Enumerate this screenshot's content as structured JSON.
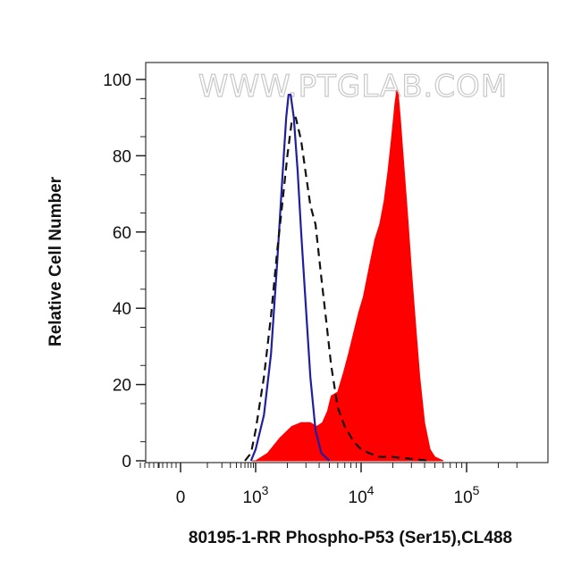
{
  "chart_data": {
    "type": "area",
    "xlabel": "80195-1-RR Phospho-P53 (Ser15),CL488",
    "ylabel": "Relative Cell Number",
    "watermark": "WWW.PTGLAB.COM",
    "x_scale": "biexponential",
    "x_ticks": [
      {
        "value": 0,
        "base": "0",
        "exp": ""
      },
      {
        "value": 1000,
        "base": "10",
        "exp": "3"
      },
      {
        "value": 10000,
        "base": "10",
        "exp": "4"
      },
      {
        "value": 100000,
        "base": "10",
        "exp": "5"
      }
    ],
    "y_ticks": [
      "0",
      "20",
      "40",
      "60",
      "80",
      "100"
    ],
    "ylim": [
      0,
      100
    ],
    "grid": false,
    "series": [
      {
        "style": "filled",
        "color": "#ff0000",
        "x": [
          850,
          1000,
          1300,
          1700,
          2200,
          2700,
          3300,
          3800,
          4300,
          4800,
          5200,
          6000,
          6800,
          7600,
          8400,
          9500,
          10500,
          12000,
          13500,
          15000,
          16500,
          18000,
          19500,
          21000,
          21800,
          22500,
          23500,
          25000,
          27500,
          30000,
          33000,
          36000,
          40000,
          45000,
          50000,
          60000
        ],
        "y": [
          0,
          0,
          2,
          6,
          9,
          10,
          10,
          9,
          10,
          13,
          17,
          18,
          23,
          28,
          33,
          39,
          43,
          51,
          58,
          62,
          68,
          76,
          85,
          94,
          97,
          96,
          90,
          80,
          65,
          50,
          35,
          22,
          10,
          3,
          1,
          0
        ]
      },
      {
        "style": "solid",
        "color": "#1f1fa0",
        "x": [
          800,
          1000,
          1200,
          1400,
          1600,
          1800,
          1950,
          2050,
          2150,
          2300,
          2500,
          2700,
          3000,
          3300,
          3700,
          4200,
          5000
        ],
        "y": [
          0,
          3,
          12,
          28,
          52,
          75,
          90,
          96,
          96,
          90,
          76,
          60,
          40,
          22,
          8,
          2,
          0
        ]
      },
      {
        "style": "dashed",
        "color": "#111111",
        "x": [
          600,
          800,
          1000,
          1200,
          1400,
          1600,
          1800,
          2000,
          2200,
          2400,
          2700,
          3000,
          3300,
          3700,
          4200,
          4700,
          5200,
          6000,
          7000,
          8500,
          10000,
          12000,
          15000,
          20000,
          30000,
          45000
        ],
        "y": [
          0,
          2,
          8,
          22,
          38,
          55,
          68,
          80,
          89,
          90,
          84,
          75,
          67,
          62,
          48,
          36,
          25,
          14,
          9,
          5,
          3,
          2,
          1,
          1,
          0.5,
          0
        ]
      }
    ]
  }
}
